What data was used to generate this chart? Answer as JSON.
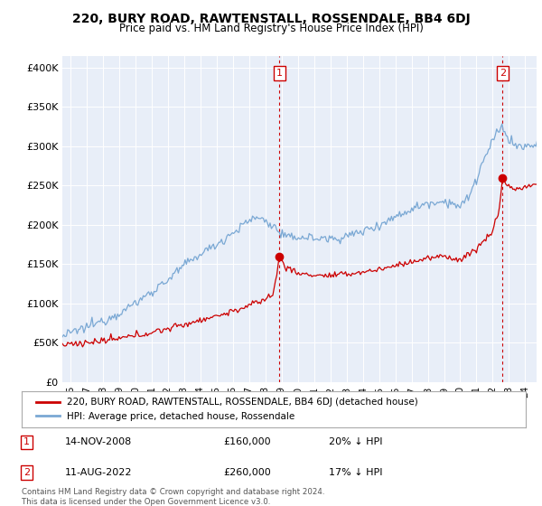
{
  "title": "220, BURY ROAD, RAWTENSTALL, ROSSENDALE, BB4 6DJ",
  "subtitle": "Price paid vs. HM Land Registry's House Price Index (HPI)",
  "ylabel_ticks": [
    "£0",
    "£50K",
    "£100K",
    "£150K",
    "£200K",
    "£250K",
    "£300K",
    "£350K",
    "£400K"
  ],
  "ytick_values": [
    0,
    50000,
    100000,
    150000,
    200000,
    250000,
    300000,
    350000,
    400000
  ],
  "ylim": [
    0,
    415000
  ],
  "xlim_start": 1995.5,
  "xlim_end": 2024.7,
  "xtick_years": [
    1996,
    1997,
    1998,
    1999,
    2000,
    2001,
    2002,
    2003,
    2004,
    2005,
    2006,
    2007,
    2008,
    2009,
    2010,
    2011,
    2012,
    2013,
    2014,
    2015,
    2016,
    2017,
    2018,
    2019,
    2020,
    2021,
    2022,
    2023,
    2024
  ],
  "xtick_labels": [
    "96",
    "97",
    "98",
    "99",
    "00",
    "01",
    "02",
    "03",
    "04",
    "05",
    "06",
    "07",
    "08",
    "09",
    "10",
    "11",
    "12",
    "13",
    "14",
    "15",
    "16",
    "17",
    "18",
    "19",
    "20",
    "21",
    "22",
    "23",
    "24"
  ],
  "sale1_x": 2008.87,
  "sale1_y": 160000,
  "sale1_label": "1",
  "sale2_x": 2022.61,
  "sale2_y": 260000,
  "sale2_label": "2",
  "sale_color": "#cc0000",
  "hpi_color": "#7aa8d4",
  "vline_color": "#cc0000",
  "plot_bg": "#e8eef8",
  "legend_items": [
    "220, BURY ROAD, RAWTENSTALL, ROSSENDALE, BB4 6DJ (detached house)",
    "HPI: Average price, detached house, Rossendale"
  ],
  "note1_date": "14-NOV-2008",
  "note1_price": "£160,000",
  "note1_hpi": "20% ↓ HPI",
  "note2_date": "11-AUG-2022",
  "note2_price": "£260,000",
  "note2_hpi": "17% ↓ HPI",
  "footer": "Contains HM Land Registry data © Crown copyright and database right 2024.\nThis data is licensed under the Open Government Licence v3.0."
}
